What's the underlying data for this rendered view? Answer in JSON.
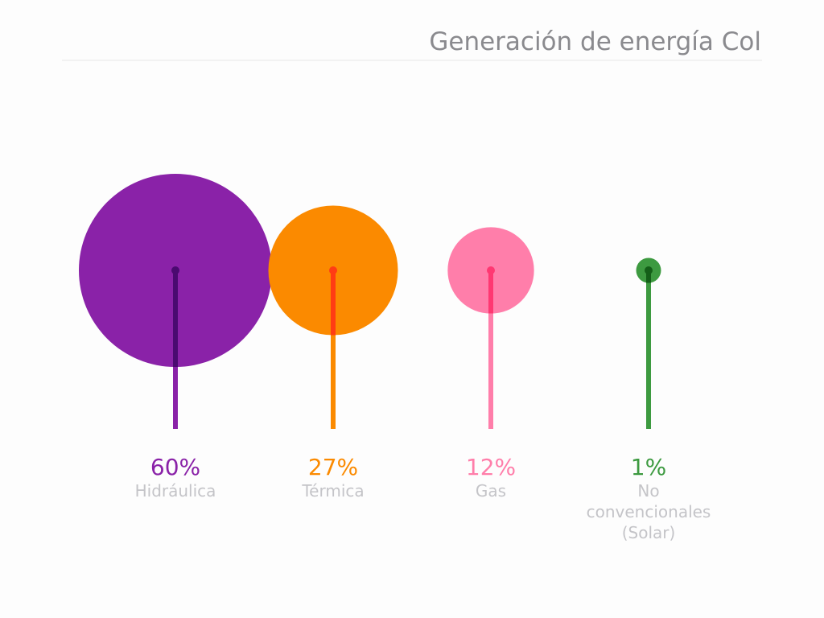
{
  "chart_data": {
    "type": "bubble-lollipop",
    "title": "Generación de energía Col",
    "unit": "%",
    "categories": [
      "Hidráulica",
      "Térmica",
      "Gas",
      "No convencionales (Solar)"
    ],
    "values": [
      60,
      27,
      12,
      1
    ],
    "value_labels": [
      "60%",
      "27%",
      "12%",
      "1%"
    ],
    "category_label_lines": [
      [
        "Hidráulica"
      ],
      [
        "Térmica"
      ],
      [
        "Gas"
      ],
      [
        "No",
        "convencionales",
        "(Solar)"
      ]
    ],
    "colors": {
      "circles": [
        "#8a22a8",
        "#fb8a00",
        "#ff7eaa",
        "#3d9a40"
      ],
      "stems": [
        "#8a22a8",
        "#fb8a00",
        "#ff7eaa",
        "#3d9a40"
      ],
      "overlap": [
        "#4a0a70",
        "#ff3c14",
        "#ff3872",
        "#145f18"
      ],
      "value_labels": [
        "#8a22a8",
        "#fb8a00",
        "#ff7eaa",
        "#3d9a40"
      ],
      "category_labels": "#c4c4c8",
      "title": "#8a8a8e",
      "divider": "#e6e6e6"
    },
    "grid": false,
    "legend": "none"
  }
}
